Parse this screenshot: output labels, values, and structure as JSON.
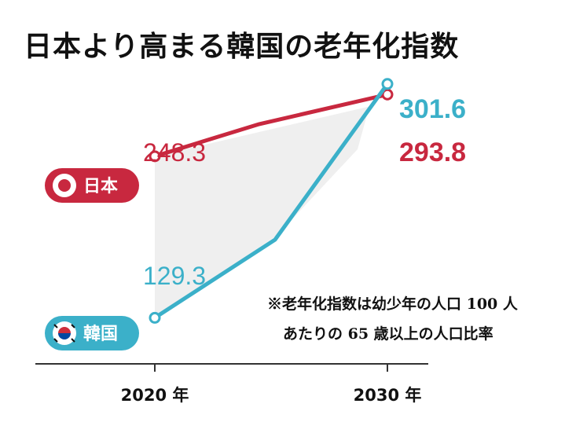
{
  "title": "日本より高まる韓国の老年化指数",
  "note": {
    "line1": "※老年化指数は幼少年の人口 100 人",
    "line2": "あたりの 65 歳以上の人口比率"
  },
  "colors": {
    "japan": "#c8283f",
    "korea": "#3bb0c9",
    "axis": "#333333",
    "shade": "#efefef"
  },
  "chart_data": {
    "type": "line",
    "title": "日本より高まる韓国の老年化指数",
    "x": [
      "2020 年",
      "2030 年"
    ],
    "ylim": [
      100,
      320
    ],
    "grid": false,
    "series": [
      {
        "name": "日本",
        "icon": "japan-flag-icon",
        "values": [
          248.3,
          293.8
        ],
        "labels": [
          "248.3",
          "293.8"
        ]
      },
      {
        "name": "韓国",
        "icon": "korea-flag-icon",
        "values": [
          129.3,
          301.6
        ],
        "labels": [
          "129.3",
          "301.6"
        ]
      }
    ]
  }
}
